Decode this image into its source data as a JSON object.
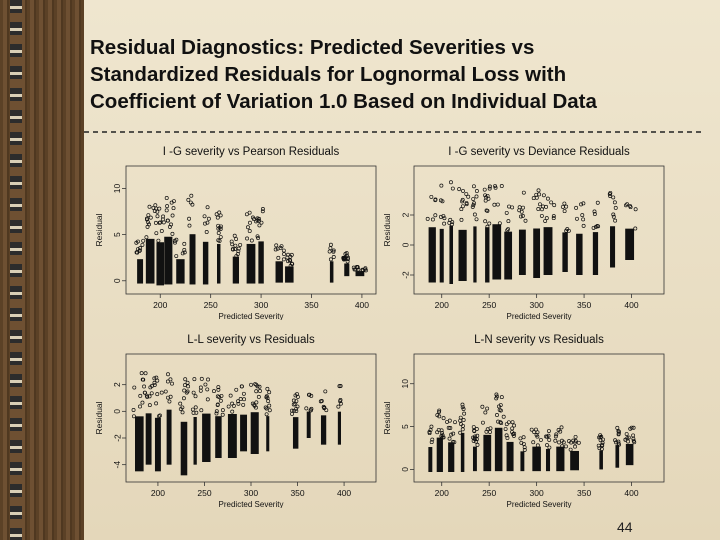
{
  "slide": {
    "title_lines": [
      "Residual Diagnostics: Predicted Severities vs",
      "Standardized Residuals for Lognormal Loss with",
      "Coefficient of Variation 1.0 Based on Individual Data"
    ],
    "page_number": "44"
  },
  "chart_data": [
    {
      "type": "scatter",
      "title": "I -G severity vs Pearson Residuals",
      "xlabel": "Predicted Severity",
      "ylabel": "Residual",
      "xticks": [
        200,
        250,
        300,
        350,
        400
      ],
      "yticks": [
        0,
        5,
        10
      ],
      "xlim": [
        170,
        410
      ],
      "ylim": [
        -1,
        12
      ],
      "grid": false,
      "columns": [
        {
          "x": 180,
          "ymin": -0.3,
          "ymax": 4.5
        },
        {
          "x": 190,
          "ymin": -0.3,
          "ymax": 8.5
        },
        {
          "x": 200,
          "ymin": -0.5,
          "ymax": 8
        },
        {
          "x": 208,
          "ymin": -0.4,
          "ymax": 9
        },
        {
          "x": 220,
          "ymin": -0.3,
          "ymax": 4.5
        },
        {
          "x": 232,
          "ymin": -0.4,
          "ymax": 9.5
        },
        {
          "x": 245,
          "ymin": -0.4,
          "ymax": 8
        },
        {
          "x": 258,
          "ymin": -0.3,
          "ymax": 7.5
        },
        {
          "x": 275,
          "ymin": -0.3,
          "ymax": 5
        },
        {
          "x": 290,
          "ymin": -0.3,
          "ymax": 7.5
        },
        {
          "x": 300,
          "ymin": -0.3,
          "ymax": 8
        },
        {
          "x": 318,
          "ymin": -0.2,
          "ymax": 4
        },
        {
          "x": 328,
          "ymin": -0.2,
          "ymax": 3
        },
        {
          "x": 370,
          "ymin": -0.2,
          "ymax": 4
        },
        {
          "x": 385,
          "ymin": 0.5,
          "ymax": 3
        },
        {
          "x": 398,
          "ymin": 0.5,
          "ymax": 1.5
        }
      ]
    },
    {
      "type": "scatter",
      "title": "I -G severity vs Deviance Residuals",
      "xlabel": "Predicted Severity",
      "ylabel": "Residual",
      "xticks": [
        200,
        250,
        300,
        350,
        400
      ],
      "yticks": [
        -2,
        0,
        2
      ],
      "xlim": [
        175,
        430
      ],
      "ylim": [
        -3,
        5
      ],
      "grid": false,
      "columns": [
        {
          "x": 190,
          "ymin": -2.5,
          "ymax": 4.2
        },
        {
          "x": 200,
          "ymin": -2.5,
          "ymax": 4
        },
        {
          "x": 210,
          "ymin": -2.6,
          "ymax": 4.5
        },
        {
          "x": 222,
          "ymin": -2.4,
          "ymax": 3.8
        },
        {
          "x": 235,
          "ymin": -2.5,
          "ymax": 4.3
        },
        {
          "x": 248,
          "ymin": -2.5,
          "ymax": 4.2
        },
        {
          "x": 258,
          "ymin": -2.3,
          "ymax": 4.4
        },
        {
          "x": 270,
          "ymin": -2.3,
          "ymax": 3.5
        },
        {
          "x": 285,
          "ymin": -2,
          "ymax": 3.5
        },
        {
          "x": 300,
          "ymin": -2.2,
          "ymax": 3.8
        },
        {
          "x": 312,
          "ymin": -2,
          "ymax": 3.8
        },
        {
          "x": 330,
          "ymin": -1.8,
          "ymax": 3
        },
        {
          "x": 345,
          "ymin": -2,
          "ymax": 3
        },
        {
          "x": 362,
          "ymin": -2,
          "ymax": 3.2
        },
        {
          "x": 380,
          "ymin": -1.5,
          "ymax": 3.5
        },
        {
          "x": 398,
          "ymin": -1,
          "ymax": 2.8
        }
      ]
    },
    {
      "type": "scatter",
      "title": "L-L severity vs Residuals",
      "xlabel": "Predicted Severity",
      "ylabel": "Residual",
      "xticks": [
        200,
        250,
        300,
        350,
        400
      ],
      "yticks": [
        -4,
        -2,
        0,
        2
      ],
      "xlim": [
        170,
        430
      ],
      "ylim": [
        -5,
        4
      ],
      "grid": false,
      "columns": [
        {
          "x": 180,
          "ymin": -4.5,
          "ymax": 3
        },
        {
          "x": 190,
          "ymin": -4,
          "ymax": 3
        },
        {
          "x": 200,
          "ymin": -4.5,
          "ymax": 2.8
        },
        {
          "x": 212,
          "ymin": -4,
          "ymax": 3.5
        },
        {
          "x": 228,
          "ymin": -4.8,
          "ymax": 2.5
        },
        {
          "x": 240,
          "ymin": -4,
          "ymax": 2.5
        },
        {
          "x": 252,
          "ymin": -3.8,
          "ymax": 2.8
        },
        {
          "x": 265,
          "ymin": -3.5,
          "ymax": 2.2
        },
        {
          "x": 280,
          "ymin": -3.5,
          "ymax": 2.5
        },
        {
          "x": 292,
          "ymin": -3,
          "ymax": 2
        },
        {
          "x": 304,
          "ymin": -3.2,
          "ymax": 2.5
        },
        {
          "x": 318,
          "ymin": -3,
          "ymax": 1.8
        },
        {
          "x": 348,
          "ymin": -2.8,
          "ymax": 1.5
        },
        {
          "x": 362,
          "ymin": -2,
          "ymax": 1.6
        },
        {
          "x": 378,
          "ymin": -2.5,
          "ymax": 1.5
        },
        {
          "x": 395,
          "ymin": -2.5,
          "ymax": 2
        }
      ]
    },
    {
      "type": "scatter",
      "title": "L-N severity vs Residuals",
      "xlabel": "Predicted Severity",
      "ylabel": "Residual",
      "xticks": [
        200,
        250,
        300,
        350,
        400
      ],
      "yticks": [
        0,
        5,
        10
      ],
      "xlim": [
        175,
        430
      ],
      "ylim": [
        -1,
        13
      ],
      "grid": false,
      "columns": [
        {
          "x": 188,
          "ymin": -0.3,
          "ymax": 5
        },
        {
          "x": 198,
          "ymin": -0.3,
          "ymax": 7
        },
        {
          "x": 210,
          "ymin": -0.3,
          "ymax": 6
        },
        {
          "x": 222,
          "ymin": -0.3,
          "ymax": 8
        },
        {
          "x": 235,
          "ymin": -0.2,
          "ymax": 5
        },
        {
          "x": 248,
          "ymin": -0.2,
          "ymax": 7.5
        },
        {
          "x": 260,
          "ymin": -0.2,
          "ymax": 9
        },
        {
          "x": 272,
          "ymin": -0.2,
          "ymax": 6
        },
        {
          "x": 285,
          "ymin": -0.2,
          "ymax": 4
        },
        {
          "x": 300,
          "ymin": -0.2,
          "ymax": 5
        },
        {
          "x": 312,
          "ymin": -0.2,
          "ymax": 4.5
        },
        {
          "x": 325,
          "ymin": -0.2,
          "ymax": 5
        },
        {
          "x": 340,
          "ymin": -0.1,
          "ymax": 4
        },
        {
          "x": 368,
          "ymin": 0,
          "ymax": 4
        },
        {
          "x": 385,
          "ymin": 0.2,
          "ymax": 5
        },
        {
          "x": 398,
          "ymin": 0.5,
          "ymax": 5
        }
      ]
    }
  ]
}
